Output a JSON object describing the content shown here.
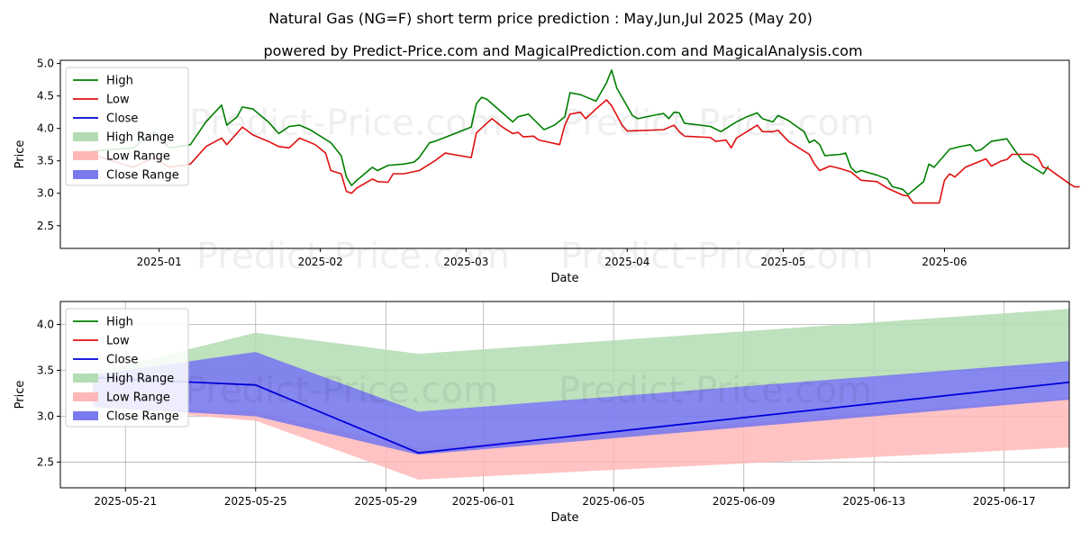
{
  "page": {
    "title_line1": "Natural Gas (NG=F) short term price prediction : May,Jun,Jul 2025 (May 20)",
    "title_line2": "powered by Predict-Price.com and MagicalPrediction.com and MagicalAnalysis.com",
    "watermark": "Predict-Price.com"
  },
  "colors": {
    "high": "#008000",
    "low": "#e01010",
    "close": "#0000dd",
    "high_range": "#b3dcb3",
    "low_range": "#ffb8b8",
    "close_range": "#7a7aee"
  },
  "legend": {
    "position": "top-left",
    "items": [
      "High",
      "Low",
      "Close",
      "High Range",
      "Low Range",
      "Close Range"
    ]
  },
  "chart_data": [
    {
      "type": "line",
      "xlabel": "Date",
      "ylabel": "Price",
      "ylim": [
        2.15,
        5.05
      ],
      "xlim": [
        "2024-12-13",
        "2025-06-25"
      ],
      "grid": false,
      "x_ticks": [
        "2025-01-01",
        "2025-02-01",
        "2025-03-01",
        "2025-04-01",
        "2025-05-01",
        "2025-06-01"
      ],
      "x_tick_labels": [
        "2025-01",
        "2025-02",
        "2025-03",
        "2025-04",
        "2025-05",
        "2025-06"
      ],
      "y_ticks": [
        2.5,
        3.0,
        3.5,
        4.0,
        4.5,
        5.0
      ],
      "y_tick_labels": [
        "2.5",
        "3.0",
        "3.5",
        "4.0",
        "4.5",
        "5.0"
      ],
      "series": [
        {
          "name": "High",
          "points": [
            [
              "2024-12-19",
              3.65
            ],
            [
              "2024-12-27",
              3.7
            ],
            [
              "2024-12-31",
              3.95
            ],
            [
              "2025-01-03",
              3.7
            ],
            [
              "2025-01-07",
              3.75
            ],
            [
              "2025-01-10",
              4.1
            ],
            [
              "2025-01-13",
              4.36
            ],
            [
              "2025-01-14",
              4.05
            ],
            [
              "2025-01-16",
              4.18
            ],
            [
              "2025-01-17",
              4.33
            ],
            [
              "2025-01-19",
              4.3
            ],
            [
              "2025-01-22",
              4.1
            ],
            [
              "2025-01-24",
              3.92
            ],
            [
              "2025-01-26",
              4.03
            ],
            [
              "2025-01-28",
              4.05
            ],
            [
              "2025-01-30",
              3.98
            ],
            [
              "2025-02-03",
              3.78
            ],
            [
              "2025-02-05",
              3.58
            ],
            [
              "2025-02-06",
              3.25
            ],
            [
              "2025-02-07",
              3.12
            ],
            [
              "2025-02-08",
              3.2
            ],
            [
              "2025-02-11",
              3.4
            ],
            [
              "2025-02-12",
              3.35
            ],
            [
              "2025-02-14",
              3.43
            ],
            [
              "2025-02-17",
              3.45
            ],
            [
              "2025-02-19",
              3.48
            ],
            [
              "2025-02-20",
              3.55
            ],
            [
              "2025-02-22",
              3.78
            ],
            [
              "2025-02-23",
              3.8
            ],
            [
              "2025-03-02",
              4.02
            ],
            [
              "2025-03-03",
              4.38
            ],
            [
              "2025-03-04",
              4.48
            ],
            [
              "2025-03-05",
              4.45
            ],
            [
              "2025-03-08",
              4.24
            ],
            [
              "2025-03-10",
              4.1
            ],
            [
              "2025-03-11",
              4.18
            ],
            [
              "2025-03-13",
              4.22
            ],
            [
              "2025-03-16",
              3.98
            ],
            [
              "2025-03-18",
              4.05
            ],
            [
              "2025-03-20",
              4.18
            ],
            [
              "2025-03-21",
              4.55
            ],
            [
              "2025-03-23",
              4.52
            ],
            [
              "2025-03-26",
              4.42
            ],
            [
              "2025-03-28",
              4.7
            ],
            [
              "2025-03-29",
              4.9
            ],
            [
              "2025-03-30",
              4.62
            ],
            [
              "2025-04-02",
              4.2
            ],
            [
              "2025-04-03",
              4.15
            ],
            [
              "2025-04-06",
              4.2
            ],
            [
              "2025-04-08",
              4.23
            ],
            [
              "2025-04-09",
              4.15
            ],
            [
              "2025-04-10",
              4.25
            ],
            [
              "2025-04-11",
              4.24
            ],
            [
              "2025-04-12",
              4.08
            ],
            [
              "2025-04-17",
              4.03
            ],
            [
              "2025-04-19",
              3.95
            ],
            [
              "2025-04-22",
              4.1
            ],
            [
              "2025-04-24",
              4.18
            ],
            [
              "2025-04-26",
              4.24
            ],
            [
              "2025-04-27",
              4.15
            ],
            [
              "2025-04-29",
              4.1
            ],
            [
              "2025-04-30",
              4.2
            ],
            [
              "2025-05-02",
              4.12
            ],
            [
              "2025-05-05",
              3.95
            ],
            [
              "2025-05-06",
              3.78
            ],
            [
              "2025-05-07",
              3.82
            ],
            [
              "2025-05-08",
              3.75
            ],
            [
              "2025-05-09",
              3.58
            ],
            [
              "2025-05-12",
              3.6
            ],
            [
              "2025-05-13",
              3.62
            ],
            [
              "2025-05-14",
              3.4
            ],
            [
              "2025-05-15",
              3.32
            ],
            [
              "2025-05-16",
              3.35
            ],
            [
              "2025-05-19",
              3.28
            ],
            [
              "2025-05-21",
              3.22
            ],
            [
              "2025-05-22",
              3.1
            ],
            [
              "2025-05-24",
              3.06
            ],
            [
              "2025-05-25",
              2.98
            ],
            [
              "2025-05-28",
              3.18
            ],
            [
              "2025-05-29",
              3.45
            ],
            [
              "2025-05-30",
              3.4
            ],
            [
              "2025-06-02",
              3.68
            ],
            [
              "2025-06-04",
              3.72
            ],
            [
              "2025-06-06",
              3.75
            ],
            [
              "2025-06-07",
              3.65
            ],
            [
              "2025-06-08",
              3.67
            ],
            [
              "2025-06-10",
              3.8
            ],
            [
              "2025-06-13",
              3.84
            ],
            [
              "2025-06-14",
              3.72
            ],
            [
              "2025-06-16",
              3.5
            ],
            [
              "2025-06-20",
              3.3
            ],
            [
              "2025-06-21",
              3.42
            ]
          ]
        },
        {
          "name": "Low",
          "points": [
            [
              "2024-12-19",
              3.6
            ],
            [
              "2024-12-27",
              3.4
            ],
            [
              "2024-12-31",
              3.55
            ],
            [
              "2025-01-03",
              3.4
            ],
            [
              "2025-01-07",
              3.45
            ],
            [
              "2025-01-10",
              3.72
            ],
            [
              "2025-01-13",
              3.85
            ],
            [
              "2025-01-14",
              3.75
            ],
            [
              "2025-01-17",
              4.02
            ],
            [
              "2025-01-19",
              3.9
            ],
            [
              "2025-01-22",
              3.8
            ],
            [
              "2025-01-24",
              3.72
            ],
            [
              "2025-01-26",
              3.7
            ],
            [
              "2025-01-28",
              3.85
            ],
            [
              "2025-01-31",
              3.75
            ],
            [
              "2025-02-02",
              3.62
            ],
            [
              "2025-02-03",
              3.35
            ],
            [
              "2025-02-05",
              3.3
            ],
            [
              "2025-02-06",
              3.03
            ],
            [
              "2025-02-07",
              3.0
            ],
            [
              "2025-02-08",
              3.08
            ],
            [
              "2025-02-11",
              3.22
            ],
            [
              "2025-02-12",
              3.18
            ],
            [
              "2025-02-14",
              3.17
            ],
            [
              "2025-02-15",
              3.3
            ],
            [
              "2025-02-17",
              3.3
            ],
            [
              "2025-02-20",
              3.35
            ],
            [
              "2025-02-21",
              3.4
            ],
            [
              "2025-02-23",
              3.5
            ],
            [
              "2025-02-25",
              3.62
            ],
            [
              "2025-03-02",
              3.55
            ],
            [
              "2025-03-03",
              3.93
            ],
            [
              "2025-03-05",
              4.08
            ],
            [
              "2025-03-06",
              4.15
            ],
            [
              "2025-03-08",
              4.02
            ],
            [
              "2025-03-10",
              3.92
            ],
            [
              "2025-03-11",
              3.94
            ],
            [
              "2025-03-12",
              3.87
            ],
            [
              "2025-03-14",
              3.88
            ],
            [
              "2025-03-15",
              3.82
            ],
            [
              "2025-03-19",
              3.75
            ],
            [
              "2025-03-20",
              4.05
            ],
            [
              "2025-03-21",
              4.22
            ],
            [
              "2025-03-23",
              4.25
            ],
            [
              "2025-03-24",
              4.15
            ],
            [
              "2025-03-26",
              4.3
            ],
            [
              "2025-03-28",
              4.44
            ],
            [
              "2025-03-29",
              4.35
            ],
            [
              "2025-03-31",
              4.05
            ],
            [
              "2025-04-01",
              3.96
            ],
            [
              "2025-04-08",
              3.98
            ],
            [
              "2025-04-10",
              4.05
            ],
            [
              "2025-04-11",
              3.95
            ],
            [
              "2025-04-12",
              3.88
            ],
            [
              "2025-04-17",
              3.86
            ],
            [
              "2025-04-18",
              3.8
            ],
            [
              "2025-04-20",
              3.82
            ],
            [
              "2025-04-21",
              3.7
            ],
            [
              "2025-04-22",
              3.85
            ],
            [
              "2025-04-24",
              3.95
            ],
            [
              "2025-04-26",
              4.05
            ],
            [
              "2025-04-27",
              3.95
            ],
            [
              "2025-04-29",
              3.95
            ],
            [
              "2025-04-30",
              3.97
            ],
            [
              "2025-05-02",
              3.8
            ],
            [
              "2025-05-05",
              3.65
            ],
            [
              "2025-05-06",
              3.6
            ],
            [
              "2025-05-07",
              3.45
            ],
            [
              "2025-05-08",
              3.35
            ],
            [
              "2025-05-10",
              3.42
            ],
            [
              "2025-05-12",
              3.38
            ],
            [
              "2025-05-14",
              3.33
            ],
            [
              "2025-05-16",
              3.2
            ],
            [
              "2025-05-19",
              3.18
            ],
            [
              "2025-05-21",
              3.08
            ],
            [
              "2025-05-24",
              2.97
            ],
            [
              "2025-05-25",
              2.96
            ],
            [
              "2025-05-26",
              2.85
            ],
            [
              "2025-05-31",
              2.85
            ],
            [
              "2025-06-01",
              3.2
            ],
            [
              "2025-06-02",
              3.3
            ],
            [
              "2025-06-03",
              3.25
            ],
            [
              "2025-06-05",
              3.4
            ],
            [
              "2025-06-08",
              3.5
            ],
            [
              "2025-06-09",
              3.53
            ],
            [
              "2025-06-10",
              3.42
            ],
            [
              "2025-06-12",
              3.5
            ],
            [
              "2025-06-13",
              3.52
            ],
            [
              "2025-06-14",
              3.6
            ],
            [
              "2025-06-18",
              3.6
            ],
            [
              "2025-06-19",
              3.55
            ],
            [
              "2025-06-20",
              3.4
            ],
            [
              "2025-06-21",
              3.38
            ],
            [
              "2025-06-22",
              3.32
            ],
            [
              "2025-06-25",
              3.15
            ],
            [
              "2025-06-26",
              3.1
            ],
            [
              "2025-06-27",
              3.1
            ]
          ]
        }
      ]
    },
    {
      "type": "line",
      "xlabel": "Date",
      "ylabel": "Price",
      "ylim": [
        2.22,
        4.25
      ],
      "xlim": [
        "2025-05-19",
        "2025-06-19"
      ],
      "grid": true,
      "x_ticks": [
        "2025-05-21",
        "2025-05-25",
        "2025-05-29",
        "2025-06-01",
        "2025-06-05",
        "2025-06-09",
        "2025-06-13",
        "2025-06-17"
      ],
      "x_tick_labels": [
        "2025-05-21",
        "2025-05-25",
        "2025-05-29",
        "2025-06-01",
        "2025-06-05",
        "2025-06-09",
        "2025-06-13",
        "2025-06-17"
      ],
      "y_ticks": [
        2.5,
        3.0,
        3.5,
        4.0
      ],
      "y_tick_labels": [
        "2.5",
        "3.0",
        "3.5",
        "4.0"
      ],
      "series": [],
      "forecast": {
        "dates": [
          "2025-05-20",
          "2025-05-25",
          "2025-05-30",
          "2025-06-19"
        ],
        "high_range": {
          "upper": [
            3.47,
            3.91,
            3.68,
            4.17
          ],
          "lower": [
            3.42,
            3.38,
            3.05,
            3.58
          ]
        },
        "low_range": {
          "upper": [
            3.1,
            3.05,
            2.65,
            3.2
          ],
          "lower": [
            3.1,
            2.95,
            2.31,
            2.66
          ]
        },
        "close_range": {
          "upper": [
            3.45,
            3.7,
            3.05,
            3.6
          ],
          "lower": [
            3.1,
            3.0,
            2.58,
            3.18
          ]
        },
        "close": [
          3.42,
          3.34,
          2.6,
          3.37
        ]
      }
    }
  ]
}
